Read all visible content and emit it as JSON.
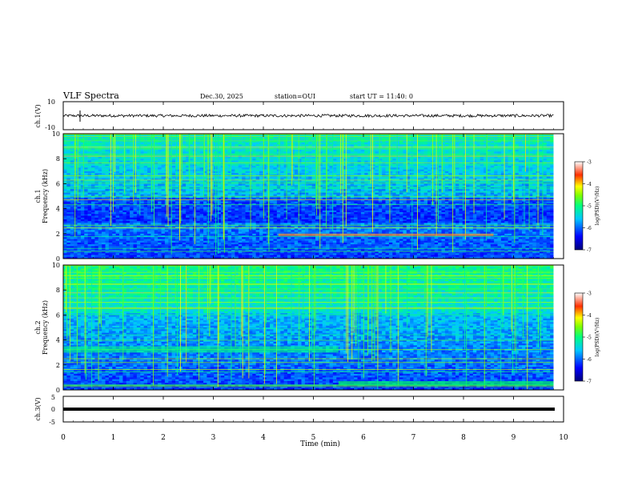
{
  "header": {
    "title": "VLF Spectra",
    "date": "Dec.30, 2025",
    "station": "station=OUI",
    "start": "start UT =   11:40: 0"
  },
  "chart_data": [
    {
      "type": "line",
      "panel": "ch1-waveform",
      "ylabel": "ch.1(V)",
      "ylim": [
        -10,
        10
      ],
      "ytick_labels": [
        "10",
        "-10"
      ],
      "xlim": [
        0,
        10
      ],
      "series": [
        {
          "baseline": 0,
          "amplitude_approx": 1.0
        }
      ],
      "spike_time_min": 0.35
    },
    {
      "type": "heatmap",
      "panel": "ch1-spectrogram",
      "ylabel": "ch.1 Frequency (kHz)",
      "ylim": [
        0,
        10
      ],
      "ytick_labels": [
        "0",
        "2",
        "4",
        "6",
        "8",
        "10"
      ],
      "xlim": [
        0,
        9.8
      ],
      "colorbar": {
        "label": "log(PSD)(V²/Hz)",
        "range": [
          -7,
          -3
        ],
        "tick_labels": [
          "-3",
          "-4",
          "-5",
          "-6",
          "-7"
        ]
      }
    },
    {
      "type": "heatmap",
      "panel": "ch2-spectrogram",
      "ylabel": "ch.2 Frequency (kHz)",
      "ylim": [
        0,
        10
      ],
      "ytick_labels": [
        "0",
        "2",
        "4",
        "6",
        "8",
        "10"
      ],
      "xlim": [
        0,
        9.8
      ],
      "colorbar": {
        "label": "log(PSD)(V²/Hz)",
        "range": [
          -7,
          -3
        ],
        "tick_labels": [
          "-3",
          "-4",
          "-5",
          "-6",
          "-7"
        ]
      }
    },
    {
      "type": "line",
      "panel": "ch3-waveform",
      "ylabel": "ch.3(V)",
      "ylim": [
        -5,
        5
      ],
      "ytick_labels": [
        "5",
        "0",
        "-5"
      ],
      "xlim": [
        0,
        10
      ],
      "series": [
        {
          "constant_value": -1
        }
      ]
    }
  ],
  "xaxis": {
    "label": "Time (min)",
    "ticks": [
      "0",
      "1",
      "2",
      "3",
      "4",
      "5",
      "6",
      "7",
      "8",
      "9",
      "10"
    ]
  }
}
